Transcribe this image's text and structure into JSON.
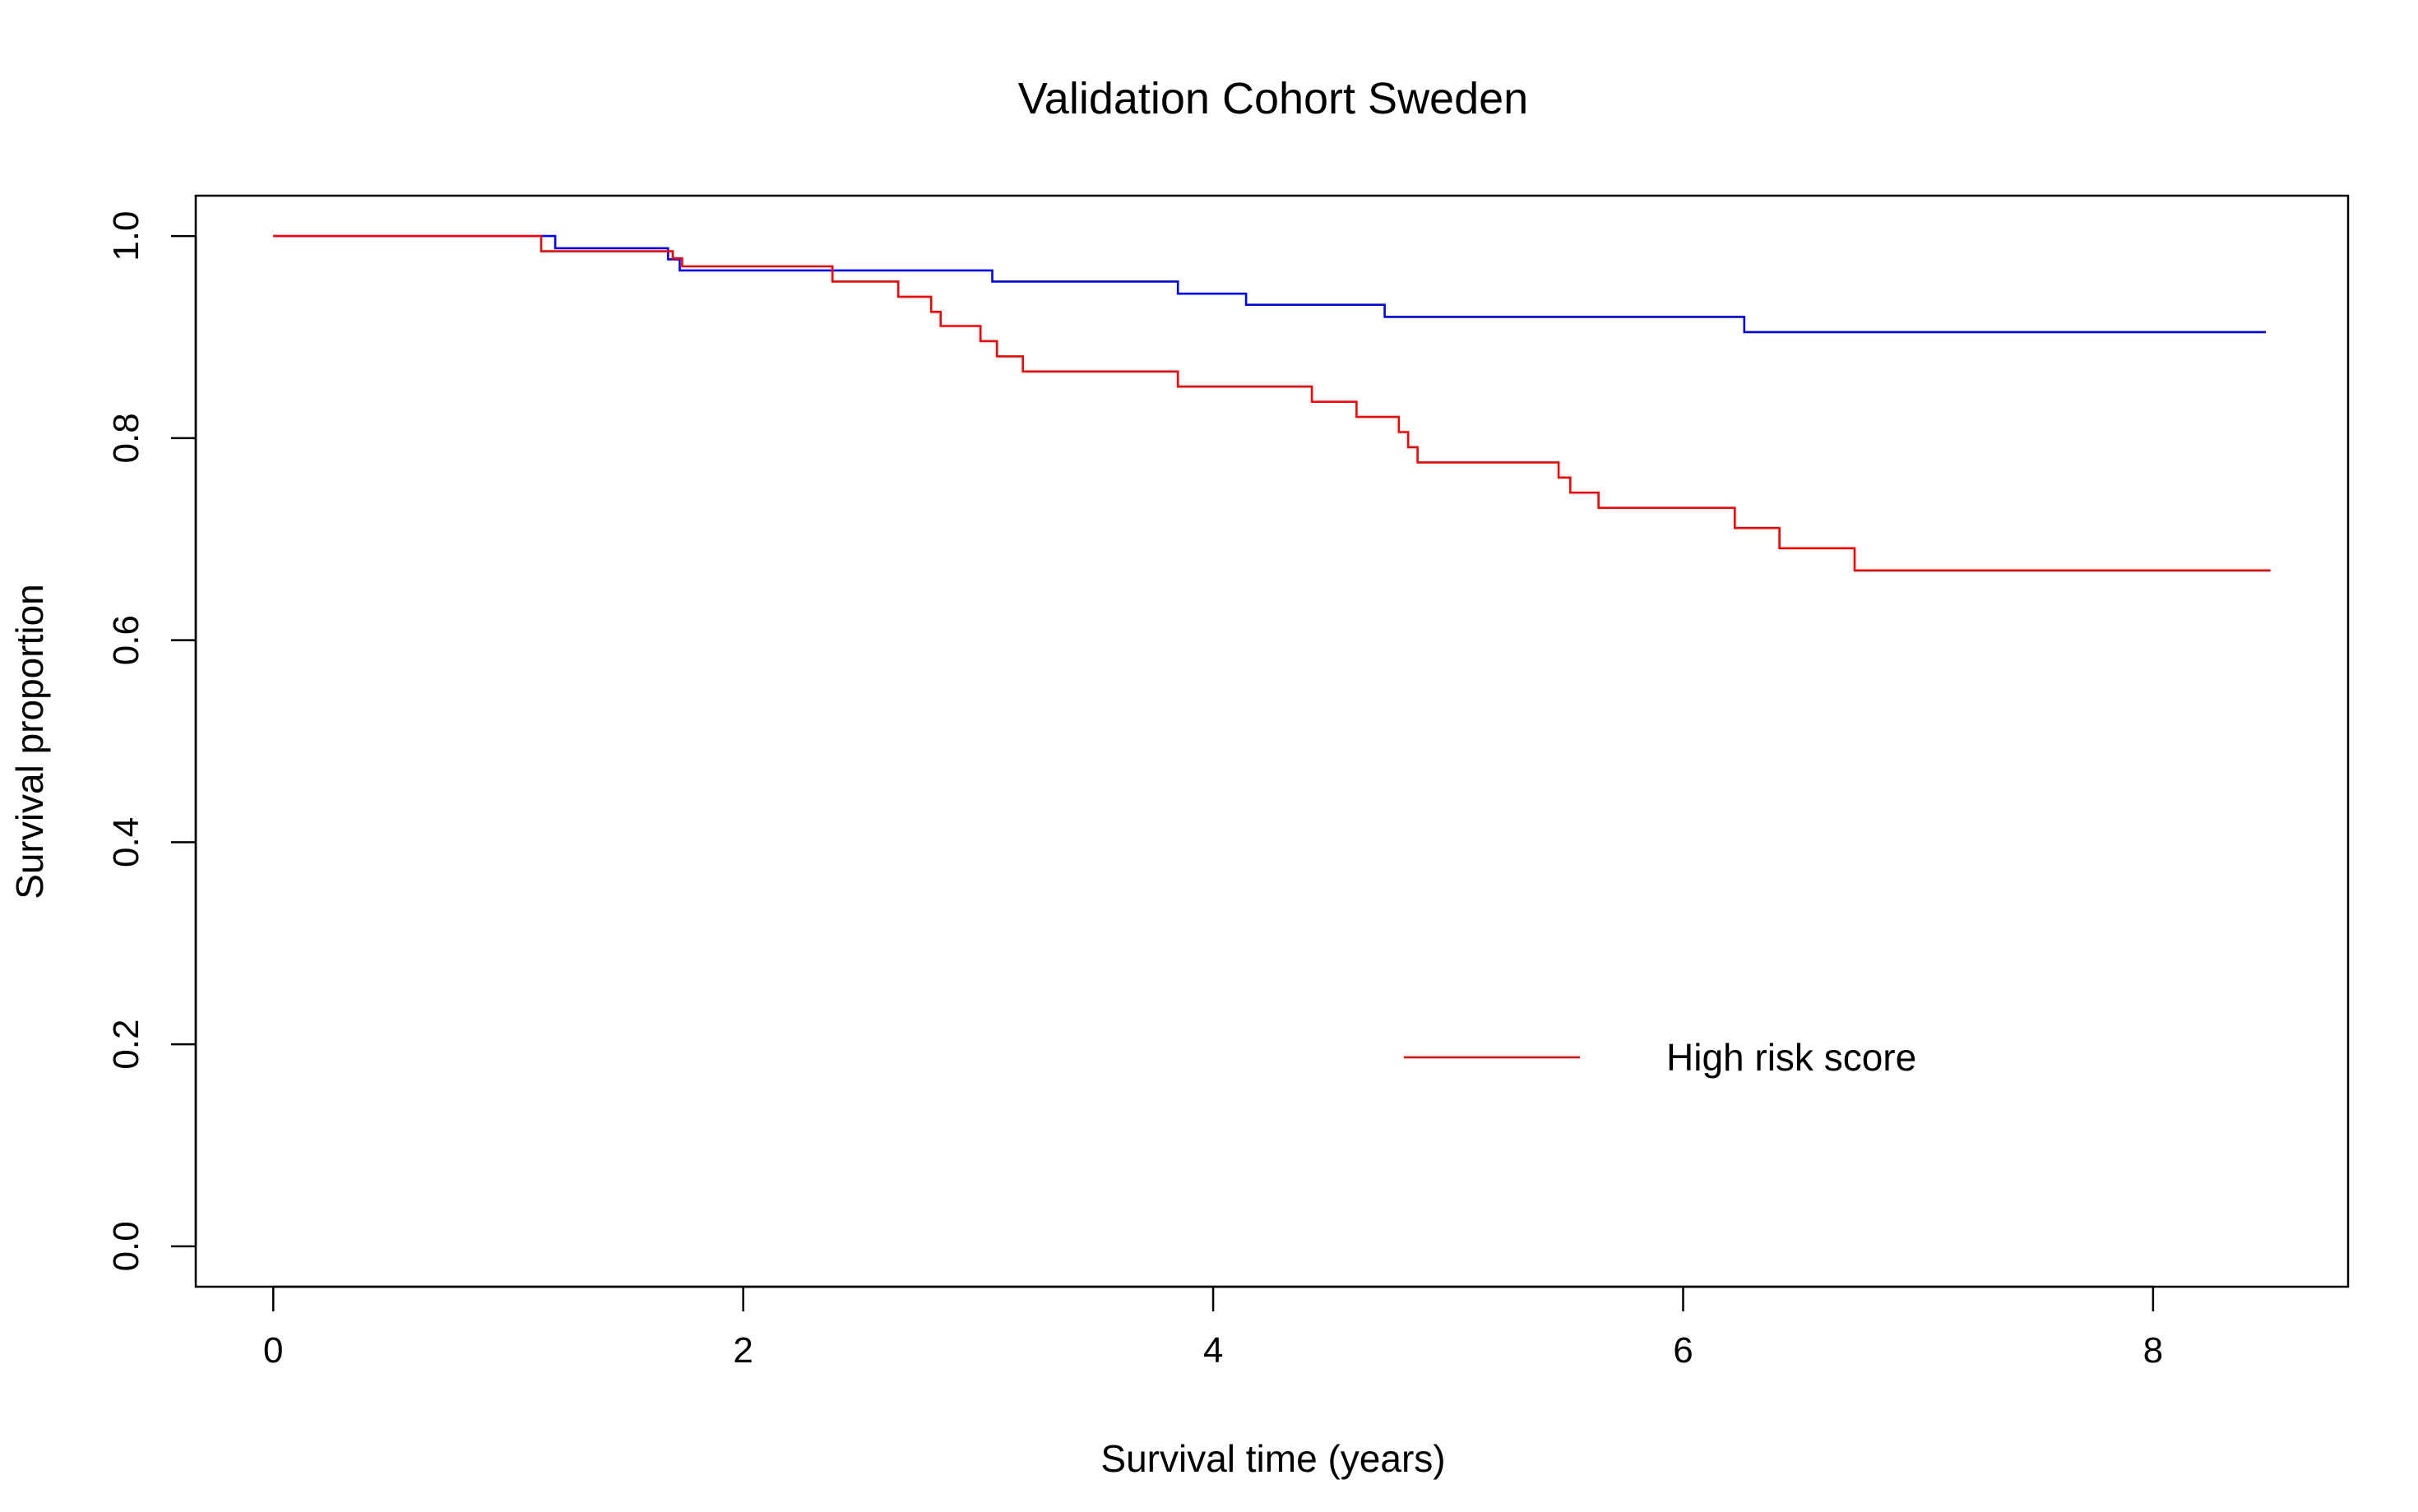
{
  "chart_data": {
    "type": "line",
    "step": "post",
    "title": "Validation Cohort Sweden",
    "xlabel": "Survival time (years)",
    "ylabel": "Survival proportion",
    "xlim": [
      -0.33,
      8.83
    ],
    "ylim": [
      -0.04,
      1.04
    ],
    "xticks": [
      0,
      2,
      4,
      6,
      8
    ],
    "xtick_labels": [
      "0",
      "2",
      "4",
      "6",
      "8"
    ],
    "yticks": [
      0,
      0.2,
      0.4,
      0.6,
      0.8,
      1
    ],
    "ytick_labels": [
      "0.0",
      "0.2",
      "0.4",
      "0.6",
      "0.8",
      "1.0"
    ],
    "grid": false,
    "legend": {
      "position": "bottom-right",
      "entries": [
        "High risk score"
      ]
    },
    "series": [
      {
        "name": "",
        "color": "#0000ff",
        "x": [
          0,
          1.2,
          1.68,
          1.73,
          3.06,
          3.85,
          4.14,
          4.73,
          6.26,
          8.48
        ],
        "y": [
          1.0,
          0.988,
          0.977,
          0.966,
          0.955,
          0.943,
          0.932,
          0.92,
          0.905,
          0.905
        ]
      },
      {
        "name": "High risk score",
        "color": "#ff0000",
        "x": [
          0,
          1.14,
          1.7,
          1.74,
          2.38,
          2.66,
          2.8,
          2.84,
          3.01,
          3.08,
          3.19,
          3.85,
          4.42,
          4.61,
          4.79,
          4.83,
          4.87,
          5.47,
          5.52,
          5.64,
          6.22,
          6.41,
          6.73,
          8.5
        ],
        "y": [
          1.0,
          0.985,
          0.978,
          0.97,
          0.955,
          0.94,
          0.925,
          0.911,
          0.896,
          0.881,
          0.866,
          0.851,
          0.836,
          0.821,
          0.806,
          0.791,
          0.776,
          0.761,
          0.746,
          0.731,
          0.711,
          0.691,
          0.669,
          0.669
        ]
      }
    ]
  }
}
